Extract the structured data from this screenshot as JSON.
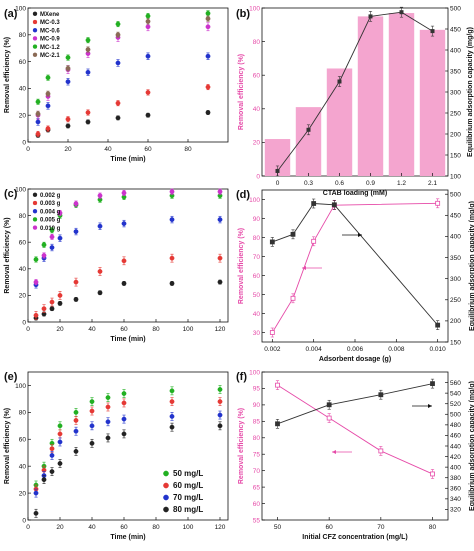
{
  "chart_data": [
    {
      "panel": "(a)",
      "type": "scatter",
      "xlabel": "Time (min)",
      "ylabel": "Removal efficiency (%)",
      "xlim": [
        0,
        100
      ],
      "ylim": [
        0,
        100
      ],
      "xticks": [
        0,
        20,
        40,
        60,
        80
      ],
      "yticks": [
        0,
        20,
        40,
        60,
        80,
        100
      ],
      "legend": "top-left",
      "x": [
        5,
        10,
        20,
        30,
        45,
        60,
        90
      ],
      "series": [
        {
          "name": "MXene",
          "color": "#222222",
          "values": [
            5,
            9,
            12,
            15,
            18,
            20,
            22
          ],
          "err": 1.5
        },
        {
          "name": "MC-0.3",
          "color": "#e53935",
          "values": [
            6,
            10,
            17,
            22,
            29,
            37,
            41
          ],
          "err": 2
        },
        {
          "name": "MC-0.6",
          "color": "#2233cc",
          "values": [
            15,
            27,
            45,
            52,
            59,
            64,
            64
          ],
          "err": 2.5
        },
        {
          "name": "MC-0.9",
          "color": "#cc33cc",
          "values": [
            20,
            34,
            54,
            66,
            78,
            86,
            86
          ],
          "err": 3
        },
        {
          "name": "MC-1.2",
          "color": "#22b022",
          "values": [
            30,
            48,
            63,
            76,
            88,
            94,
            96
          ],
          "err": 2
        },
        {
          "name": "MC-2.1",
          "color": "#8a6a55",
          "values": [
            21,
            36,
            55,
            69,
            80,
            90,
            92
          ],
          "err": 2
        }
      ]
    },
    {
      "panel": "(b)",
      "type": "bar+line",
      "xlabel": "CTAB loading (mM)",
      "ylabel": "Removal efficiency (%)",
      "y2label": "Equilibrium adsorption capacity (mg/g)",
      "categories": [
        "0",
        "0.3",
        "0.6",
        "0.9",
        "1.2",
        "2.1"
      ],
      "ylim": [
        0,
        100
      ],
      "yticks": [
        0,
        20,
        40,
        60,
        80,
        100
      ],
      "y2lim": [
        100,
        500
      ],
      "y2ticks": [
        100,
        150,
        200,
        250,
        300,
        350,
        400,
        450,
        500
      ],
      "bars": {
        "color": "#f4a5cf",
        "values": [
          22,
          41,
          64,
          95,
          97,
          87
        ]
      },
      "line": {
        "color": "#333333",
        "values": [
          112,
          210,
          325,
          480,
          490,
          445
        ]
      }
    },
    {
      "panel": "(c)",
      "type": "scatter",
      "xlabel": "Time (min)",
      "ylabel": "Removal efficiency (%)",
      "xlim": [
        0,
        125
      ],
      "ylim": [
        0,
        100
      ],
      "xticks": [
        0,
        20,
        40,
        60,
        80,
        100,
        120
      ],
      "yticks": [
        0,
        20,
        40,
        60,
        80,
        100
      ],
      "legend": "top-left",
      "x": [
        5,
        10,
        15,
        20,
        30,
        45,
        60,
        90,
        120
      ],
      "series": [
        {
          "name": "0.002 g",
          "color": "#222222",
          "values": [
            3,
            6,
            10,
            14,
            17,
            22,
            29,
            29,
            30
          ],
          "err": 1.5
        },
        {
          "name": "0.003 g",
          "color": "#e53935",
          "values": [
            5,
            10,
            15,
            20,
            30,
            38,
            46,
            48,
            48
          ],
          "err": 3
        },
        {
          "name": "0.004 g",
          "color": "#2233cc",
          "values": [
            28,
            48,
            56,
            63,
            68,
            72,
            74,
            77,
            77
          ],
          "err": 2.5
        },
        {
          "name": "0.005 g",
          "color": "#22b022",
          "values": [
            47,
            58,
            69,
            80,
            88,
            92,
            94,
            95,
            95
          ],
          "err": 2
        },
        {
          "name": "0.010 g",
          "color": "#cc33cc",
          "values": [
            30,
            50,
            64,
            82,
            89,
            95,
            97,
            98,
            98
          ],
          "err": 2
        }
      ]
    },
    {
      "panel": "(d)",
      "type": "line",
      "xlabel": "Adsorbent dosage (g)",
      "ylabel": "Removal efficiency (%)",
      "y2label": "Equilibrium adsorption capacity (mg/g)",
      "x": [
        0.002,
        0.003,
        0.004,
        0.005,
        0.01
      ],
      "xlim": [
        0.0015,
        0.0105
      ],
      "xticks": [
        0.002,
        0.004,
        0.006,
        0.008,
        0.01
      ],
      "xticklabels": [
        "0.002",
        "0.004",
        "0.006",
        "0.008",
        "0.010"
      ],
      "ylim": [
        25,
        105
      ],
      "yticks": [
        30,
        40,
        50,
        60,
        70,
        80,
        90,
        100
      ],
      "y2lim": [
        150,
        510
      ],
      "y2ticks": [
        150,
        200,
        250,
        300,
        350,
        400,
        450,
        500
      ],
      "series": [
        {
          "name": "Removal efficiency",
          "axis": "left",
          "color": "#e64aa8",
          "values": [
            30,
            48,
            78,
            97,
            98
          ]
        },
        {
          "name": "Equilibrium adsorption capacity",
          "axis": "right",
          "color": "#333333",
          "values": [
            387,
            405,
            478,
            475,
            190
          ]
        }
      ]
    },
    {
      "panel": "(e)",
      "type": "scatter",
      "xlabel": "Time (min)",
      "ylabel": "Removal efficiency (%)",
      "xlim": [
        0,
        125
      ],
      "ylim": [
        0,
        110
      ],
      "xticks": [
        0,
        20,
        40,
        60,
        80,
        100,
        120
      ],
      "yticks": [
        0,
        20,
        40,
        60,
        80,
        100
      ],
      "legend": "bottom-right",
      "x": [
        5,
        10,
        15,
        20,
        30,
        40,
        50,
        60,
        90,
        120
      ],
      "series": [
        {
          "name": "50 mg/L",
          "color": "#22b022",
          "values": [
            26,
            40,
            57,
            70,
            80,
            88,
            91,
            94,
            96,
            97
          ],
          "err": 3
        },
        {
          "name": "60 mg/L",
          "color": "#e53935",
          "values": [
            23,
            37,
            53,
            64,
            74,
            81,
            84,
            87,
            88,
            88
          ],
          "err": 3
        },
        {
          "name": "70 mg/L",
          "color": "#2233cc",
          "values": [
            20,
            33,
            48,
            58,
            66,
            70,
            73,
            75,
            77,
            78
          ],
          "err": 3
        },
        {
          "name": "80 mg/L",
          "color": "#222222",
          "values": [
            5,
            30,
            36,
            42,
            51,
            57,
            61,
            64,
            69,
            70
          ],
          "err": 3
        }
      ]
    },
    {
      "panel": "(f)",
      "type": "line",
      "xlabel": "Initial CFZ concentration (mg/L)",
      "ylabel": "Removal efficiency (%)",
      "y2label": "Equilibrium adsorption capacity (mg/g)",
      "x": [
        50,
        60,
        70,
        80
      ],
      "xlim": [
        47,
        83
      ],
      "xticks": [
        50,
        60,
        70,
        80
      ],
      "ylim": [
        55,
        100
      ],
      "yticks": [
        55,
        60,
        65,
        70,
        75,
        80,
        85,
        90,
        95,
        100
      ],
      "y2lim": [
        300,
        580
      ],
      "y2ticks": [
        320,
        340,
        360,
        380,
        400,
        420,
        440,
        460,
        480,
        500,
        520,
        540,
        560
      ],
      "series": [
        {
          "name": "Removal efficiency",
          "axis": "left",
          "color": "#e64aa8",
          "values": [
            96,
            86,
            76,
            69
          ]
        },
        {
          "name": "Equilibrium adsorption capacity",
          "axis": "right",
          "color": "#333333",
          "values": [
            482,
            518,
            537,
            558
          ]
        }
      ]
    }
  ]
}
